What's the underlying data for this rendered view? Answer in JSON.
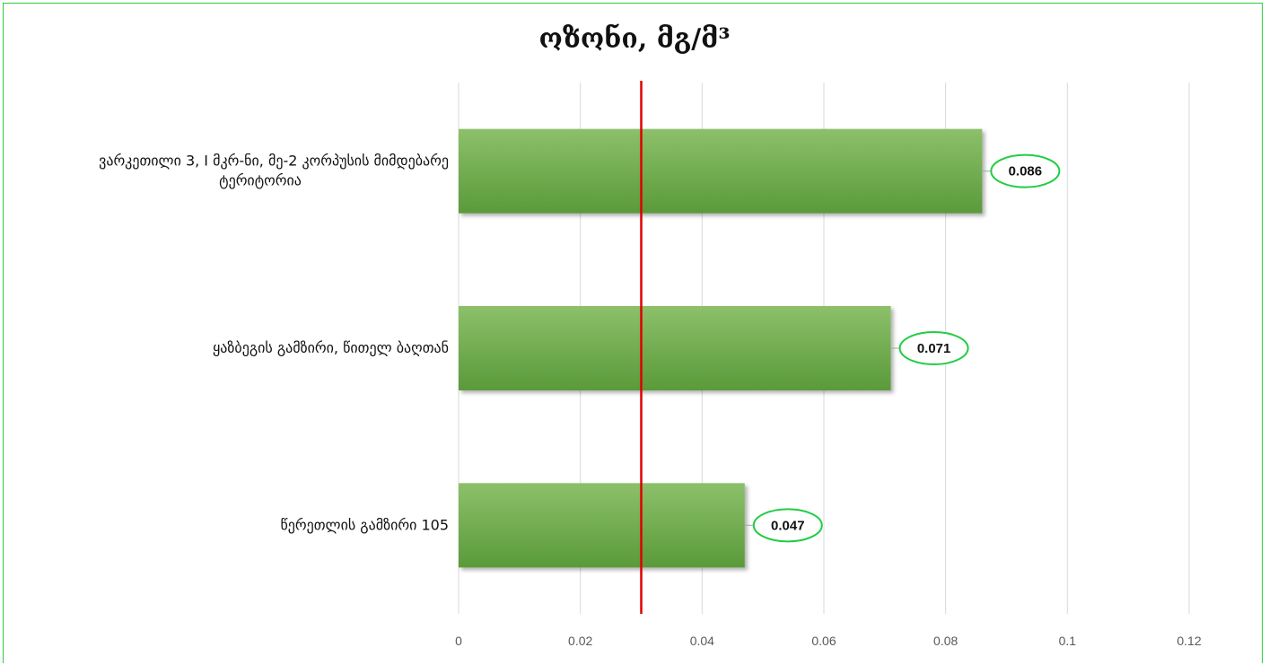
{
  "chart_data": {
    "type": "bar",
    "orientation": "horizontal",
    "title": "ოზონი, მგ/მ³",
    "categories": [
      "ვარკეთილი 3, I მკრ-ნი, მე-2 კორპუსის მიმდებარე ტერიტორია",
      "ყაზბეგის გამზირი, წითელ ბაღთან",
      "წერეთლის გამზირი 105"
    ],
    "category_lines": [
      [
        "ვარკეთილი 3, I მკრ-ნი, მე-2 კორპუსის მიმდებარე",
        "ტერიტორია"
      ],
      [
        "ყაზბეგის გამზირი, წითელ ბაღთან"
      ],
      [
        "წერეთლის გამზირი 105"
      ]
    ],
    "values": [
      0.086,
      0.071,
      0.047
    ],
    "data_labels": [
      "0.086",
      "0.071",
      "0.047"
    ],
    "xlim": [
      0,
      0.12
    ],
    "x_ticks": [
      "0",
      "0.02",
      "0.04",
      "0.06",
      "0.08",
      "0.1",
      "0.12"
    ],
    "reference_line": 0.03,
    "grid": "vertical",
    "legend": "none",
    "xlabel": "",
    "ylabel": "",
    "colors": {
      "bar_top": "#8cc06a",
      "bar_bottom": "#5a9a3a",
      "reference_line": "#e00000",
      "label_ellipse": "#22cc44",
      "grid": "#d9d9d9",
      "frame": "#2ecc40"
    }
  }
}
